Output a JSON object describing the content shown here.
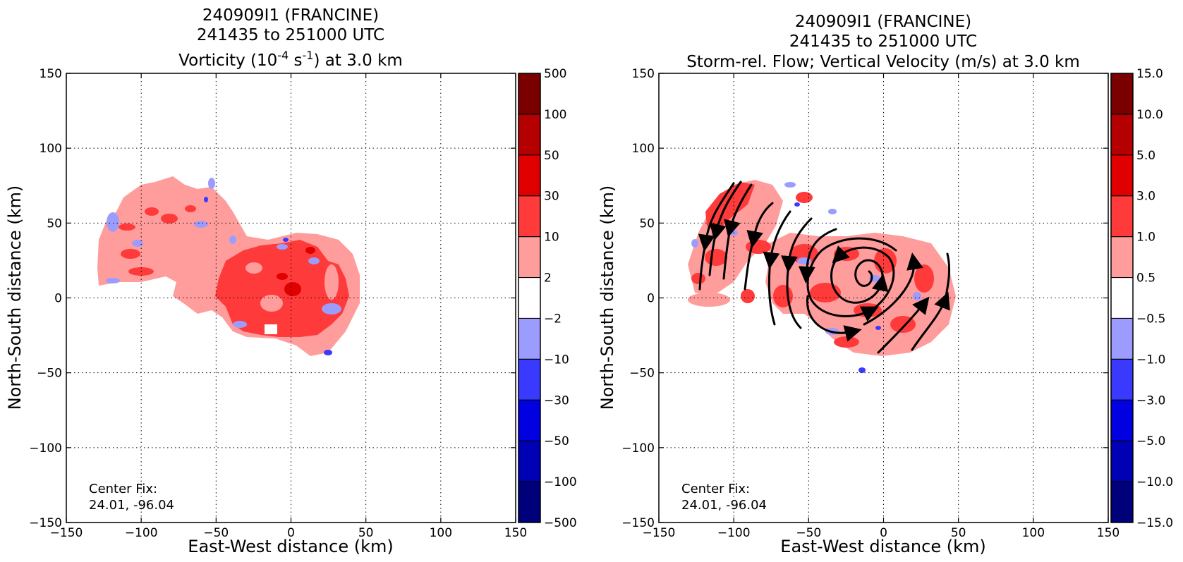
{
  "chart_data": [
    {
      "type": "heatmap",
      "title_lines": [
        "240909I1 (FRANCINE)",
        "241435 to 251000 UTC"
      ],
      "title_line3": {
        "pre": "Vorticity (10",
        "sup1": "-4",
        "mid": " s",
        "sup2": "-1",
        "post": ") at 3.0 km"
      },
      "xlabel": "East-West distance (km)",
      "ylabel": "North-South distance (km)",
      "xlim": [
        -150,
        150
      ],
      "ylim": [
        -150,
        150
      ],
      "xticks": [
        -150,
        -100,
        -50,
        0,
        50,
        100,
        150
      ],
      "yticks": [
        -150,
        -100,
        -50,
        0,
        50,
        100,
        150
      ],
      "xtick_labels": [
        "−150",
        "−100",
        "−50",
        "0",
        "50",
        "100",
        "150"
      ],
      "ytick_labels": [
        "−150",
        "−100",
        "−50",
        "0",
        "50",
        "100",
        "150"
      ],
      "grid": true,
      "center_fix_label": "Center Fix:",
      "center_fix_value": "24.01, -96.04",
      "colorbar": {
        "levels": [
          "500",
          "100",
          "50",
          "30",
          "10",
          "2",
          "−2",
          "−10",
          "−30",
          "−50",
          "−100",
          "−500"
        ],
        "colors": [
          "#7a0000",
          "#b40000",
          "#e00000",
          "#ff3a3a",
          "#ff9c9c",
          "#ffffff",
          "#9c9cff",
          "#3a3aff",
          "#0000e0",
          "#0000b4",
          "#00007a"
        ]
      },
      "field_regions": [
        {
          "value_class": "2 to 10",
          "color": "#ff9c9c",
          "area": "broad region from x=-130 to 45 km, y=-40 to 78 km"
        },
        {
          "value_class": "10 to 30",
          "color": "#ff3a3a",
          "area": "main core centered near (0, 0), x=-45 to 35 km, y=-30 to 35 km"
        },
        {
          "value_class": "30 to 50",
          "color": "#e00000",
          "area": "small patches near (0, 5)"
        },
        {
          "value_class": "-2 to -10",
          "color": "#9c9cff",
          "area": "scattered patches, largest near (-110, 50) and (30, -20)"
        },
        {
          "value_class": "-10 to -30",
          "color": "#3a3aff",
          "area": "small spots near (30, -38) and (-5, 40)"
        }
      ]
    },
    {
      "type": "heatmap",
      "title_lines": [
        "240909I1 (FRANCINE)",
        "241435 to 251000 UTC",
        "Storm-rel. Flow; Vertical Velocity (m/s) at 3.0 km"
      ],
      "xlabel": "East-West distance (km)",
      "ylabel": "North-South distance (km)",
      "xlim": [
        -150,
        150
      ],
      "ylim": [
        -150,
        150
      ],
      "xticks": [
        -150,
        -100,
        -50,
        0,
        50,
        100,
        150
      ],
      "yticks": [
        -150,
        -100,
        -50,
        0,
        50,
        100,
        150
      ],
      "xtick_labels": [
        "−150",
        "−100",
        "−50",
        "0",
        "50",
        "100",
        "150"
      ],
      "ytick_labels": [
        "−150",
        "−100",
        "−50",
        "0",
        "50",
        "100",
        "150"
      ],
      "grid": true,
      "center_fix_label": "Center Fix:",
      "center_fix_value": "24.01, -96.04",
      "colorbar": {
        "levels": [
          "15.0",
          "10.0",
          "5.0",
          "3.0",
          "1.0",
          "0.5",
          "−0.5",
          "−1.0",
          "−3.0",
          "−5.0",
          "−10.0",
          "−15.0"
        ],
        "colors": [
          "#7a0000",
          "#b40000",
          "#e00000",
          "#ff3a3a",
          "#ff9c9c",
          "#ffffff",
          "#9c9cff",
          "#3a3aff",
          "#0000e0",
          "#0000b4",
          "#00007a"
        ]
      },
      "field_regions": [
        {
          "value_class": "0.5 to 1.0",
          "color": "#ff9c9c",
          "area": "scattered region x=-130 to 55 km, y=-40 to 78 km"
        },
        {
          "value_class": "1.0 to 3.0",
          "color": "#ff3a3a",
          "area": "patches in bands around the center and NW arc"
        },
        {
          "value_class": "-0.5 to -1.0",
          "color": "#9c9cff",
          "area": "small scattered patches"
        },
        {
          "value_class": "-1.0 to -3.0",
          "color": "#3a3aff",
          "area": "isolated spots"
        }
      ],
      "streamlines": "cyclonic (counter-clockwise) storm-relative flow spiralling into center near (5, 5) km, with southward flow on the western side"
    }
  ]
}
